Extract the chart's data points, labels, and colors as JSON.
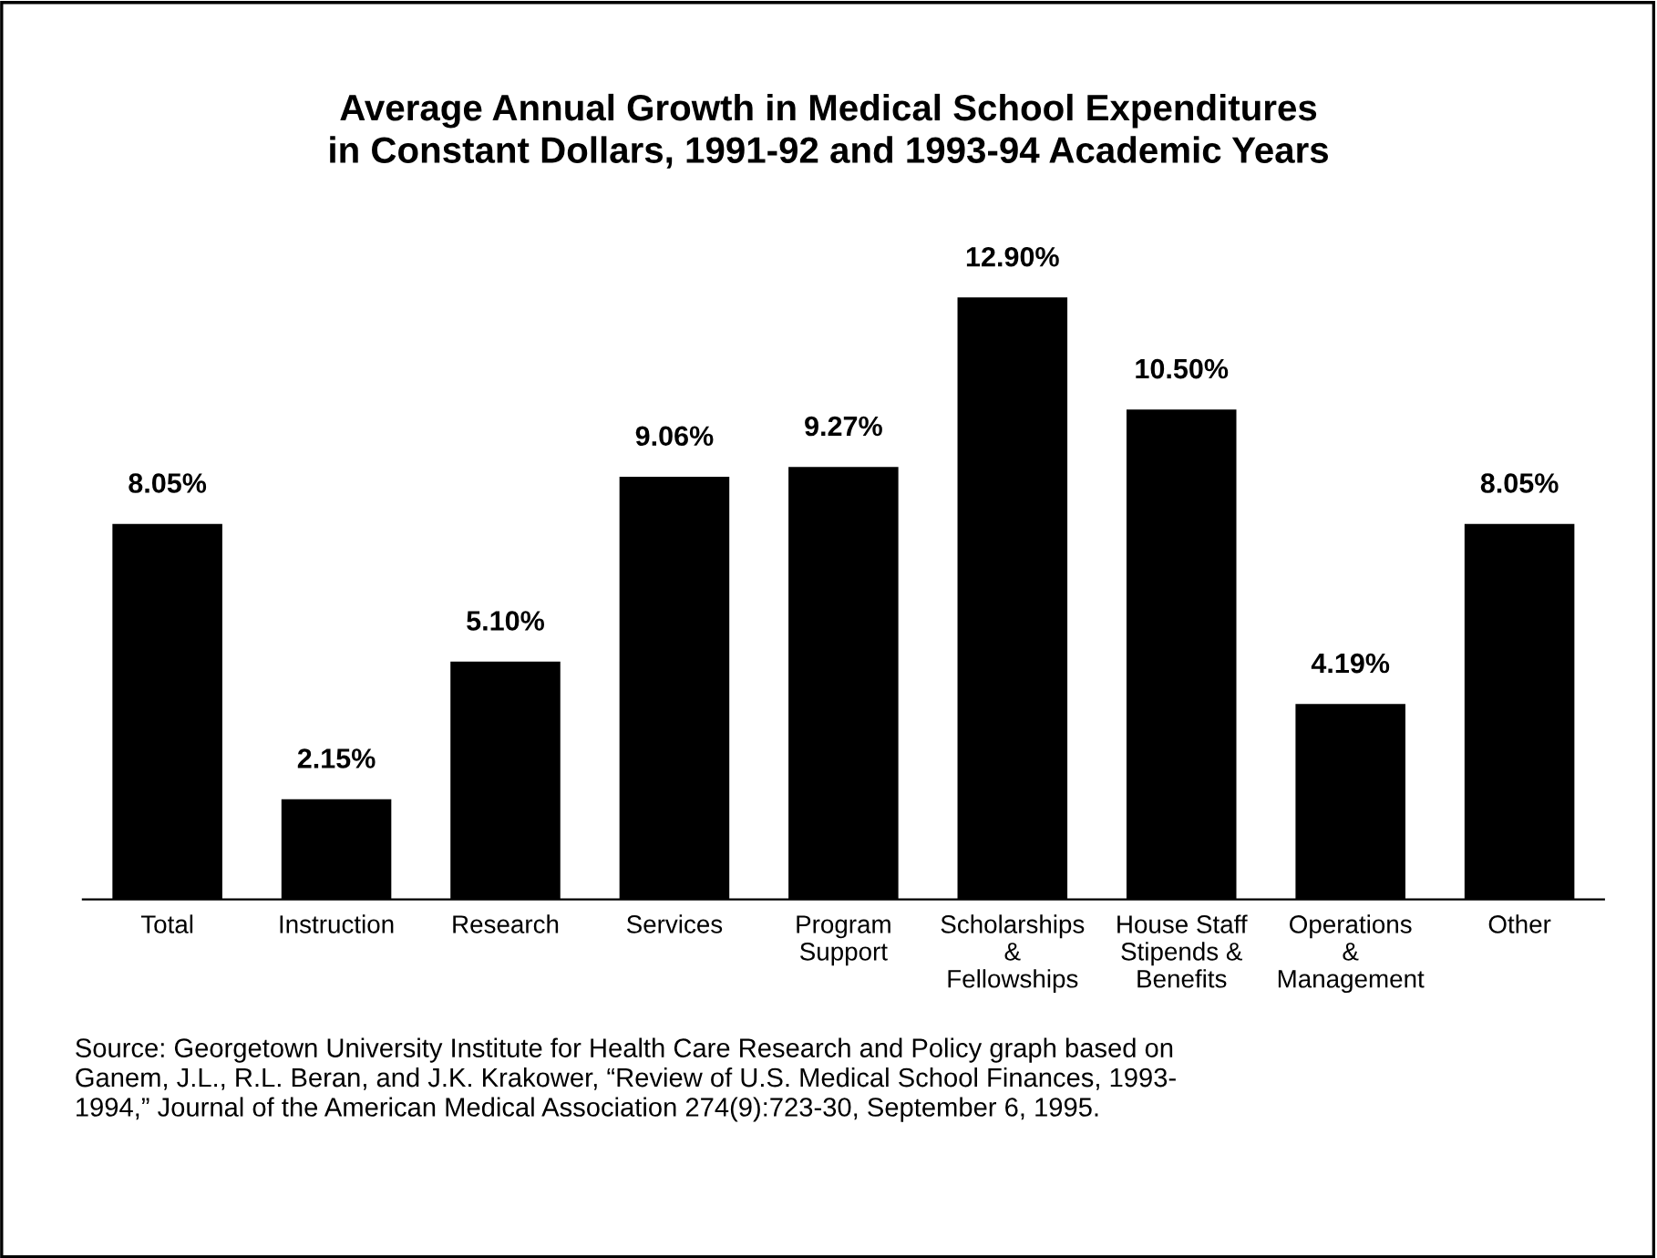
{
  "chart_data": {
    "type": "bar",
    "title": "Average Annual Growth in Medical School Expenditures\nin Constant Dollars, 1991-92 and 1993-94 Academic Years",
    "categories": [
      "Total",
      "Instruction",
      "Research",
      "Services",
      "Program\nSupport",
      "Scholarships\n&\nFellowships",
      "House Staff\nStipends &\nBenefits",
      "Operations\n&\nManagement",
      "Other"
    ],
    "values": [
      8.05,
      2.15,
      5.1,
      9.06,
      9.27,
      12.9,
      10.5,
      4.19,
      8.05
    ],
    "value_labels": [
      "8.05%",
      "2.15%",
      "5.10%",
      "9.06%",
      "9.27%",
      "12.90%",
      "10.50%",
      "4.19%",
      "8.05%"
    ],
    "color": "#000000",
    "grid": false,
    "legend": false,
    "annotations": [
      "Source: Georgetown University Institute for Health Care Research and Policy graph based on\nGanem, J.L., R.L. Beran, and J.K. Krakower, “Review of U.S. Medical School Finances, 1993-\n1994,” Journal of the American Medical Association 274(9):723-30, September 6, 1995."
    ]
  }
}
